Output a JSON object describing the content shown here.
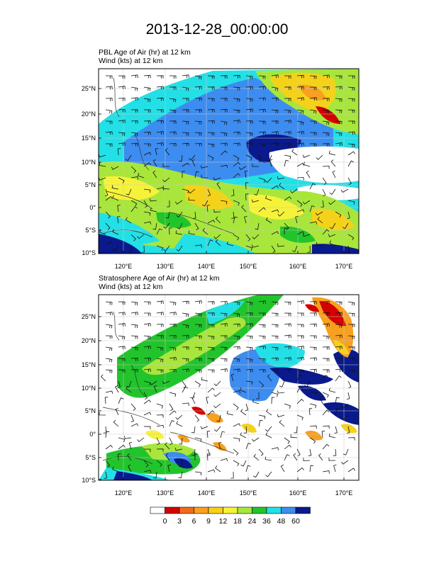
{
  "title": "2013-12-28_00:00:00",
  "panels": [
    {
      "field_label": "PBL Age of Air",
      "field_units": "(hr)",
      "level_at": "at",
      "level": "12 km",
      "wind_label": "Wind",
      "wind_units": "(kts)",
      "wind_at": "at",
      "wind_level": "12 km"
    },
    {
      "field_label": "Stratosphere Age of Air",
      "field_units": "(hr)",
      "level_at": "at",
      "level": "12 km",
      "wind_label": "Wind",
      "wind_units": "(kts)",
      "wind_at": "at",
      "wind_level": "12 km"
    }
  ],
  "lat_ticks": [
    "25°N",
    "20°N",
    "15°N",
    "10°N",
    "5°N",
    "0°",
    "5°S",
    "10°S"
  ],
  "lon_ticks": [
    "120°E",
    "130°E",
    "140°E",
    "150°E",
    "160°E",
    "170°E"
  ],
  "colorbar": {
    "labels": [
      "0",
      "3",
      "6",
      "9",
      "12",
      "18",
      "24",
      "36",
      "48",
      "60"
    ],
    "colors": [
      "#ffffff",
      "#d40000",
      "#f26a1b",
      "#f8a020",
      "#f5d21a",
      "#f6f23a",
      "#a8e63c",
      "#22c42c",
      "#22e0e6",
      "#3d8cf0",
      "#0a1a8c"
    ]
  }
}
